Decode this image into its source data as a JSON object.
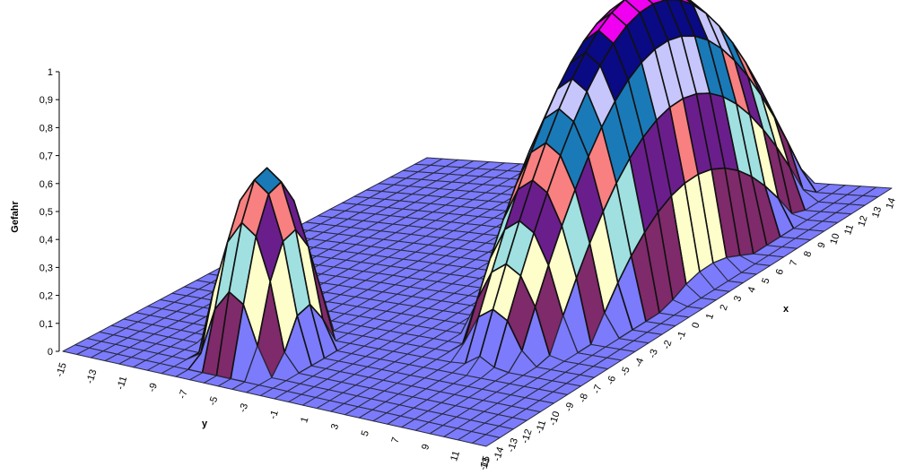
{
  "chart_data": {
    "type": "surface",
    "title": "",
    "xlabel": "x",
    "ylabel": "y",
    "zlabel": "Gefahr",
    "x_range": [
      -15,
      14
    ],
    "y_range": [
      -15,
      13
    ],
    "zlim": [
      0,
      1
    ],
    "x_ticks": [
      "-15",
      "-14",
      "-13",
      "-12",
      "-11",
      "-10",
      "-9",
      "-8",
      "-7",
      "-6",
      "-5",
      "-4",
      "-3",
      "-2",
      "-1",
      "0",
      "1",
      "2",
      "3",
      "4",
      "5",
      "6",
      "7",
      "8",
      "9",
      "10",
      "11",
      "12",
      "13",
      "14"
    ],
    "y_ticks": [
      "-15",
      "-13",
      "-11",
      "-9",
      "-7",
      "-5",
      "-3",
      "-1",
      "1",
      "3",
      "5",
      "7",
      "9",
      "11",
      "13"
    ],
    "z_ticks": [
      "0",
      "0,1",
      "0,2",
      "0,3",
      "0,4",
      "0,5",
      "0,6",
      "0,7",
      "0,8",
      "0,9",
      "1"
    ],
    "peaks": [
      {
        "x": -10.5,
        "y": -5.5,
        "height": 0.65,
        "x_halfwidth": 3.5,
        "y_halfwidth": 3.2
      },
      {
        "x": 3,
        "y": 6.5,
        "height": 1.0,
        "x_halfwidth": 11.5,
        "y_halfwidth": 4.8
      }
    ],
    "grid": true,
    "color_bands": [
      "#7b7bfc",
      "#7f2a6a",
      "#fefeca",
      "#a0e0e0",
      "#6a1e8c",
      "#f88080",
      "#1a7ab8",
      "#c6c6fc",
      "#0a0a84",
      "#f000f0"
    ]
  }
}
